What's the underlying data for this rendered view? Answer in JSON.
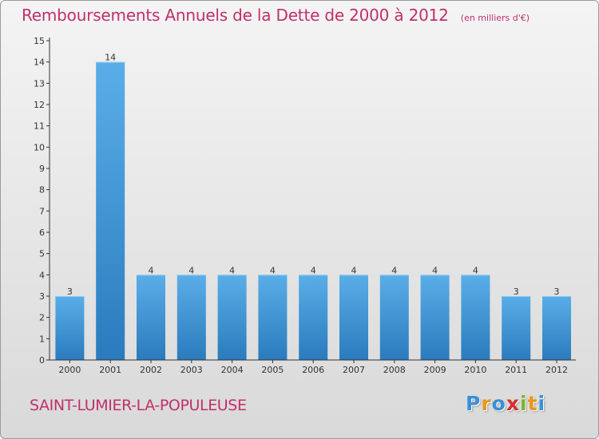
{
  "header": {
    "title": "Remboursements Annuels de la Dette de 2000 à 2012",
    "subtitle": "(en milliers d'€)"
  },
  "footer": {
    "commune": "SAINT-LUMIER-LA-POPULEUSE",
    "brand": "Proxiti"
  },
  "colors": {
    "accent": "#c0306b",
    "bar_light": "#5aaee8",
    "bar_dark": "#2a7bbd",
    "brand_letters": [
      "#3a8fd6",
      "#e8961c",
      "#3a8fd6",
      "#d62e2e",
      "#7ab52e",
      "#e8961c",
      "#3a8fd6"
    ]
  },
  "chart_data": {
    "type": "bar",
    "title": "Remboursements Annuels de la Dette de 2000 à 2012",
    "subtitle": "(en milliers d'€)",
    "xlabel": "",
    "ylabel": "",
    "categories": [
      "2000",
      "2001",
      "2002",
      "2003",
      "2004",
      "2005",
      "2006",
      "2007",
      "2008",
      "2009",
      "2010",
      "2011",
      "2012"
    ],
    "values": [
      3,
      14,
      4,
      4,
      4,
      4,
      4,
      4,
      4,
      4,
      4,
      3,
      3
    ],
    "data_labels": [
      "3",
      "14",
      "4",
      "4",
      "4",
      "4",
      "4",
      "4",
      "4",
      "4",
      "4",
      "3",
      "3"
    ],
    "ylim": [
      0,
      15
    ],
    "yticks": [
      "0",
      "1",
      "2",
      "3",
      "4",
      "5",
      "6",
      "7",
      "8",
      "9",
      "10",
      "11",
      "12",
      "13",
      "14",
      "15"
    ],
    "grid": false,
    "legend": "none"
  }
}
